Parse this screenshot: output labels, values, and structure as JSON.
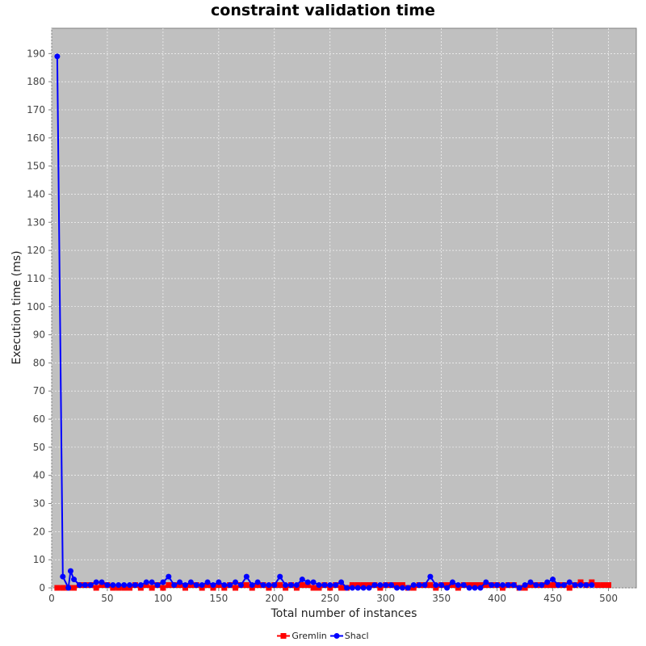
{
  "chart_data": {
    "type": "line",
    "title": "constraint validation time",
    "xlabel": "Total number of instances",
    "ylabel": "Execution time (ms)",
    "xlim": [
      0,
      525
    ],
    "ylim": [
      0,
      199
    ],
    "x_ticks": [
      0,
      50,
      100,
      150,
      200,
      250,
      300,
      350,
      400,
      450,
      500
    ],
    "y_ticks": [
      0,
      10,
      20,
      30,
      40,
      50,
      60,
      70,
      80,
      90,
      100,
      110,
      120,
      130,
      140,
      150,
      160,
      170,
      180,
      190
    ],
    "grid": true,
    "legend": "bottom",
    "background": "#c0c0c0",
    "series": [
      {
        "name": "Gremlin",
        "color": "#ff0000",
        "marker": "square",
        "points": [
          [
            5,
            0
          ],
          [
            10,
            0
          ],
          [
            15,
            0
          ],
          [
            20,
            0
          ],
          [
            25,
            1
          ],
          [
            30,
            1
          ],
          [
            35,
            1
          ],
          [
            40,
            0
          ],
          [
            45,
            1
          ],
          [
            50,
            1
          ],
          [
            55,
            0
          ],
          [
            60,
            0
          ],
          [
            65,
            0
          ],
          [
            70,
            0
          ],
          [
            75,
            1
          ],
          [
            80,
            0
          ],
          [
            85,
            1
          ],
          [
            90,
            0
          ],
          [
            95,
            1
          ],
          [
            100,
            0
          ],
          [
            105,
            1
          ],
          [
            110,
            1
          ],
          [
            115,
            1
          ],
          [
            120,
            0
          ],
          [
            125,
            1
          ],
          [
            130,
            1
          ],
          [
            135,
            0
          ],
          [
            140,
            1
          ],
          [
            145,
            0
          ],
          [
            150,
            1
          ],
          [
            155,
            0
          ],
          [
            160,
            1
          ],
          [
            165,
            0
          ],
          [
            170,
            1
          ],
          [
            175,
            1
          ],
          [
            180,
            0
          ],
          [
            185,
            1
          ],
          [
            190,
            1
          ],
          [
            195,
            0
          ],
          [
            200,
            1
          ],
          [
            205,
            1
          ],
          [
            210,
            0
          ],
          [
            215,
            1
          ],
          [
            220,
            0
          ],
          [
            225,
            1
          ],
          [
            230,
            1
          ],
          [
            235,
            0
          ],
          [
            240,
            0
          ],
          [
            245,
            1
          ],
          [
            250,
            0
          ],
          [
            255,
            1
          ],
          [
            260,
            0
          ],
          [
            265,
            0
          ],
          [
            270,
            1
          ],
          [
            275,
            1
          ],
          [
            280,
            1
          ],
          [
            285,
            1
          ],
          [
            290,
            1
          ],
          [
            295,
            0
          ],
          [
            300,
            1
          ],
          [
            305,
            1
          ],
          [
            310,
            1
          ],
          [
            315,
            1
          ],
          [
            320,
            0
          ],
          [
            325,
            0
          ],
          [
            330,
            1
          ],
          [
            335,
            1
          ],
          [
            340,
            1
          ],
          [
            345,
            0
          ],
          [
            350,
            1
          ],
          [
            355,
            1
          ],
          [
            360,
            1
          ],
          [
            365,
            0
          ],
          [
            370,
            1
          ],
          [
            375,
            1
          ],
          [
            380,
            1
          ],
          [
            385,
            1
          ],
          [
            390,
            1
          ],
          [
            395,
            1
          ],
          [
            400,
            1
          ],
          [
            405,
            0
          ],
          [
            410,
            1
          ],
          [
            415,
            1
          ],
          [
            420,
            0
          ],
          [
            425,
            0
          ],
          [
            430,
            1
          ],
          [
            435,
            1
          ],
          [
            440,
            1
          ],
          [
            445,
            1
          ],
          [
            450,
            1
          ],
          [
            455,
            1
          ],
          [
            460,
            1
          ],
          [
            465,
            0
          ],
          [
            470,
            1
          ],
          [
            475,
            2
          ],
          [
            480,
            1
          ],
          [
            485,
            2
          ],
          [
            490,
            1
          ],
          [
            495,
            1
          ],
          [
            500,
            1
          ]
        ]
      },
      {
        "name": "Shacl",
        "color": "#0000ff",
        "marker": "circle",
        "points": [
          [
            5,
            189
          ],
          [
            10,
            4
          ],
          [
            15,
            0
          ],
          [
            17,
            6
          ],
          [
            20,
            3
          ],
          [
            25,
            1
          ],
          [
            30,
            1
          ],
          [
            35,
            1
          ],
          [
            40,
            2
          ],
          [
            45,
            2
          ],
          [
            50,
            1
          ],
          [
            55,
            1
          ],
          [
            60,
            1
          ],
          [
            65,
            1
          ],
          [
            70,
            1
          ],
          [
            75,
            1
          ],
          [
            80,
            1
          ],
          [
            85,
            2
          ],
          [
            90,
            2
          ],
          [
            95,
            1
          ],
          [
            100,
            2
          ],
          [
            105,
            4
          ],
          [
            110,
            1
          ],
          [
            115,
            2
          ],
          [
            120,
            1
          ],
          [
            125,
            2
          ],
          [
            130,
            1
          ],
          [
            135,
            1
          ],
          [
            140,
            2
          ],
          [
            145,
            1
          ],
          [
            150,
            2
          ],
          [
            155,
            1
          ],
          [
            160,
            1
          ],
          [
            165,
            2
          ],
          [
            170,
            1
          ],
          [
            175,
            4
          ],
          [
            180,
            1
          ],
          [
            185,
            2
          ],
          [
            190,
            1
          ],
          [
            195,
            1
          ],
          [
            200,
            1
          ],
          [
            205,
            4
          ],
          [
            210,
            1
          ],
          [
            215,
            1
          ],
          [
            220,
            1
          ],
          [
            225,
            3
          ],
          [
            230,
            2
          ],
          [
            235,
            2
          ],
          [
            240,
            1
          ],
          [
            245,
            1
          ],
          [
            250,
            1
          ],
          [
            255,
            1
          ],
          [
            260,
            2
          ],
          [
            265,
            0
          ],
          [
            270,
            0
          ],
          [
            275,
            0
          ],
          [
            280,
            0
          ],
          [
            285,
            0
          ],
          [
            290,
            1
          ],
          [
            295,
            1
          ],
          [
            300,
            1
          ],
          [
            305,
            1
          ],
          [
            310,
            0
          ],
          [
            315,
            0
          ],
          [
            320,
            0
          ],
          [
            325,
            1
          ],
          [
            330,
            1
          ],
          [
            335,
            1
          ],
          [
            340,
            4
          ],
          [
            345,
            1
          ],
          [
            350,
            1
          ],
          [
            355,
            0
          ],
          [
            360,
            2
          ],
          [
            365,
            1
          ],
          [
            370,
            1
          ],
          [
            375,
            0
          ],
          [
            380,
            0
          ],
          [
            385,
            0
          ],
          [
            390,
            2
          ],
          [
            395,
            1
          ],
          [
            400,
            1
          ],
          [
            405,
            1
          ],
          [
            410,
            1
          ],
          [
            415,
            1
          ],
          [
            420,
            0
          ],
          [
            425,
            1
          ],
          [
            430,
            2
          ],
          [
            435,
            1
          ],
          [
            440,
            1
          ],
          [
            445,
            2
          ],
          [
            450,
            3
          ],
          [
            455,
            1
          ],
          [
            460,
            1
          ],
          [
            465,
            2
          ],
          [
            470,
            1
          ],
          [
            475,
            1
          ],
          [
            480,
            1
          ],
          [
            485,
            1
          ]
        ]
      }
    ]
  }
}
